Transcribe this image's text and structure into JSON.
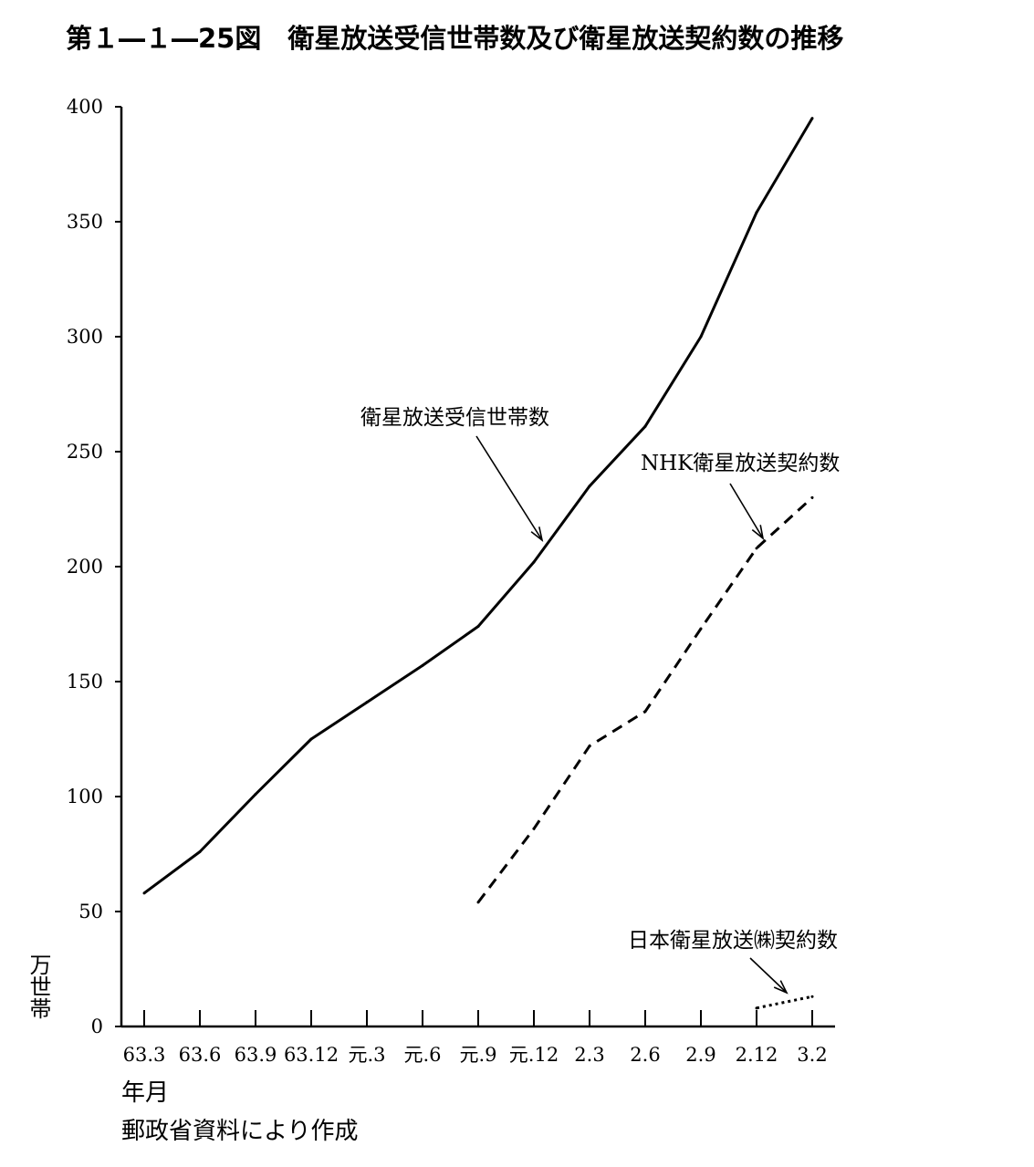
{
  "chart_data": {
    "type": "line",
    "title": "第１―１―25図　衛星放送受信世帯数及び衛星放送契約数の推移",
    "xlabel": "年月",
    "ylabel": "万世帯",
    "source": "郵政省資料により作成",
    "categories": [
      "63.3",
      "63.6",
      "63.9",
      "63.12",
      "元.3",
      "元.6",
      "元.9",
      "元.12",
      "2.3",
      "2.6",
      "2.9",
      "2.12",
      "3.2"
    ],
    "yticks": [
      0,
      50,
      100,
      150,
      200,
      250,
      300,
      350,
      400
    ],
    "ylim": [
      0,
      400
    ],
    "grid": false,
    "series": [
      {
        "name": "衛星放送受信世帯数",
        "style": "solid",
        "values": [
          58,
          76,
          101,
          125,
          141,
          157,
          174,
          202,
          235,
          261,
          300,
          354,
          395
        ]
      },
      {
        "name": "NHK衛星放送契約数",
        "style": "dashed",
        "values": [
          null,
          null,
          null,
          null,
          null,
          null,
          54,
          86,
          122,
          137,
          173,
          208,
          230
        ]
      },
      {
        "name": "日本衛星放送㈱契約数",
        "style": "dotted",
        "values": [
          null,
          null,
          null,
          null,
          null,
          null,
          null,
          null,
          null,
          null,
          null,
          8,
          13
        ]
      }
    ]
  }
}
